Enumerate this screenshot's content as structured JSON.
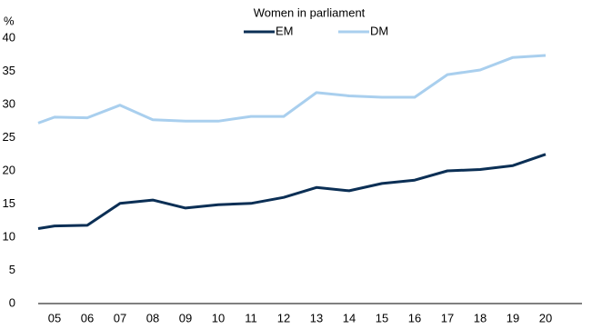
{
  "chart_data": {
    "type": "line",
    "title": "Women in parliament",
    "y_label": "%",
    "categories": [
      null,
      "05",
      "06",
      "07",
      "08",
      "09",
      "10",
      "11",
      "12",
      "13",
      "14",
      "15",
      "16",
      "17",
      "18",
      "19",
      "20"
    ],
    "series": [
      {
        "name": "EM",
        "color": "#0b2f55",
        "values": [
          11.3,
          11.7,
          11.8,
          15.1,
          15.6,
          14.4,
          14.9,
          15.1,
          16.0,
          17.5,
          17.0,
          18.1,
          18.6,
          20.0,
          20.2,
          20.8,
          22.5
        ]
      },
      {
        "name": "DM",
        "color": "#a9cfee",
        "values": [
          27.2,
          28.1,
          28.0,
          29.9,
          27.7,
          27.5,
          27.5,
          28.2,
          28.2,
          31.8,
          31.3,
          31.1,
          31.1,
          34.5,
          35.2,
          37.1,
          37.4
        ]
      }
    ],
    "ylim": [
      0,
      40
    ],
    "yticks": [
      0,
      5,
      10,
      15,
      20,
      25,
      30,
      35,
      40
    ],
    "grid": false
  }
}
